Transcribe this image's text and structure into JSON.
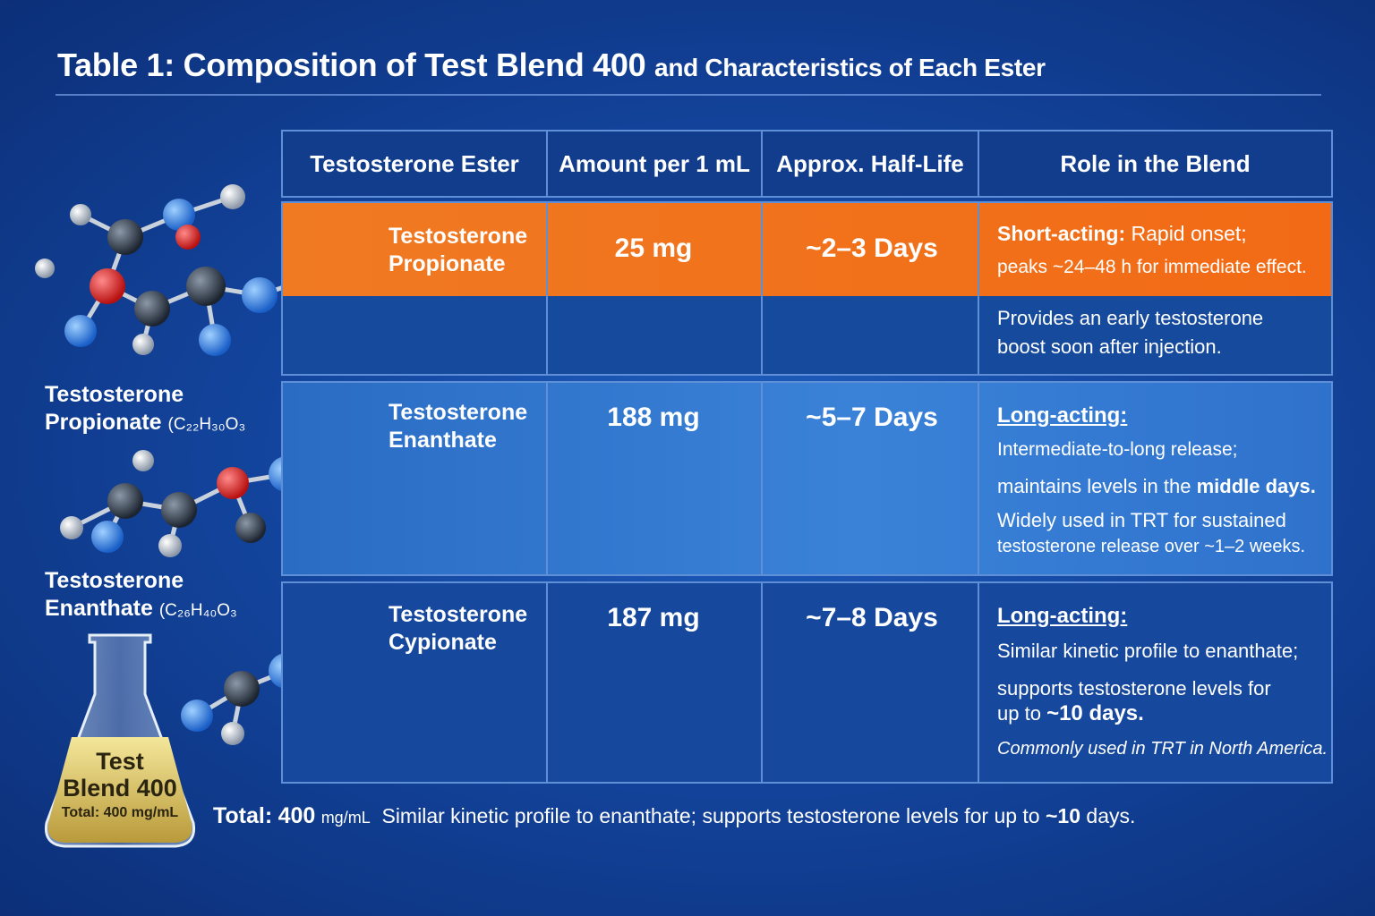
{
  "title": {
    "main": "Table 1: Composition of Test Blend 400",
    "sub": "and Characteristics of Each Ester"
  },
  "table": {
    "headers": [
      "Testosterone Ester",
      "Amount per 1 mL",
      "Approx. Half-Life",
      "Role in the Blend"
    ],
    "rows": [
      {
        "ester": [
          "Testosterone",
          "Propionate"
        ],
        "amount": "25 mg",
        "half_life": "~2–3 Days",
        "role_lead": "Short-acting:",
        "role_lines": [
          "Rapid onset;",
          "peaks ~24–48 h for immediate effect.",
          "Provides an early testosterone",
          "boost soon after injection."
        ]
      },
      {
        "ester": [
          "Testosterone",
          "Enanthate"
        ],
        "amount": "188 mg",
        "half_life": "~5–7 Days",
        "role_lead": "Long-acting:",
        "role_lines": [
          "Intermediate-to-long release;",
          "maintains levels in the",
          "middle days.",
          "Widely used in TRT for sustained",
          "testosterone release over ~1–2 weeks."
        ]
      },
      {
        "ester": [
          "Testosterone",
          "Cypionate"
        ],
        "amount": "187 mg",
        "half_life": "~7–8 Days",
        "role_lead": "Long-acting:",
        "role_lines": [
          "Similar kinetic profile to enanthate;",
          "supports testosterone levels for",
          "up to",
          "~10 days.",
          "Commonly used in TRT in North America."
        ]
      }
    ]
  },
  "molecules": [
    {
      "name": [
        "Testosterone",
        "Propionate"
      ],
      "formula": "(C₂₂H₃₀O₃"
    },
    {
      "name": [
        "Testosterone",
        "Enanthate"
      ],
      "formula": "(C₂₆H₄₀O₃"
    }
  ],
  "flask": {
    "line1": "Test",
    "line2": "Blend 400",
    "total": "Total: 400 mg/mL"
  },
  "footer": {
    "label": "Total:",
    "amount": "400",
    "unit": "mg/mL",
    "text": "Similar kinetic profile to enanthate; supports testosterone levels for up to",
    "highlight": "~10",
    "tail": "days."
  },
  "colors": {
    "accent_orange": "#f26a15",
    "navy": "#123d8c",
    "border": "#5f8fd6"
  },
  "icons": [
    "molecule-model-icon",
    "flask-icon"
  ]
}
